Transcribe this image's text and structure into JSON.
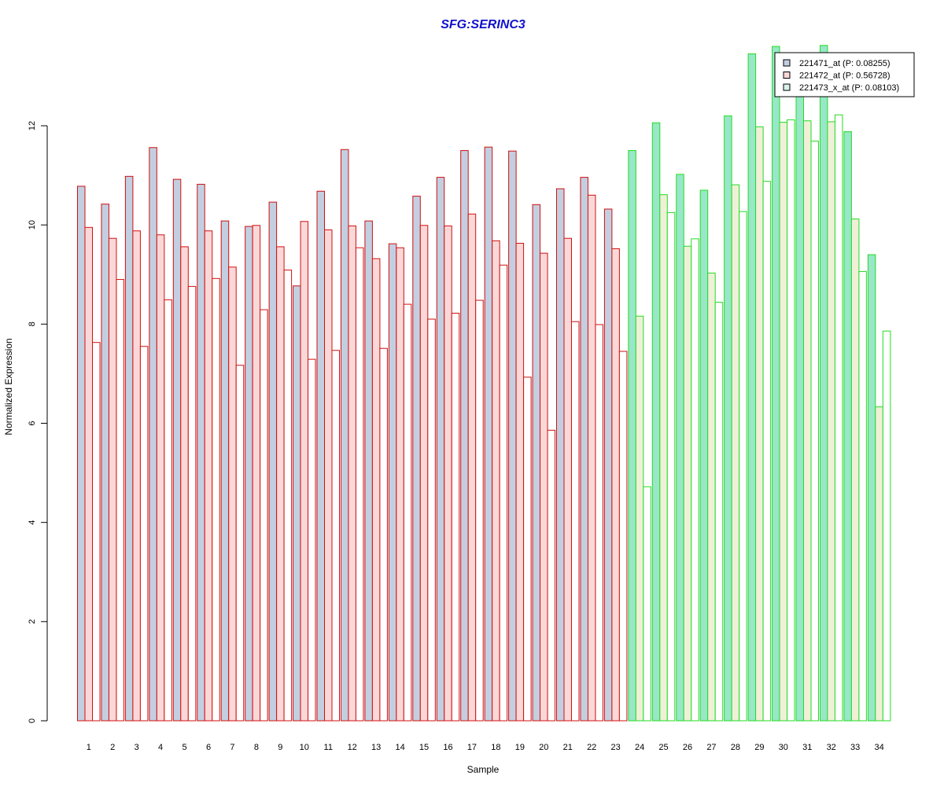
{
  "chart_data": {
    "type": "bar",
    "title": "SFG:SERINC3",
    "xlabel": "Sample",
    "ylabel": "Normalized Expression",
    "ylim": [
      0,
      13.7
    ],
    "yticks": [
      "0",
      "2",
      "4",
      "6",
      "8",
      "10",
      "12"
    ],
    "categories": [
      "1",
      "2",
      "3",
      "4",
      "5",
      "6",
      "7",
      "8",
      "9",
      "10",
      "11",
      "12",
      "13",
      "14",
      "15",
      "16",
      "17",
      "18",
      "19",
      "20",
      "21",
      "22",
      "23",
      "24",
      "25",
      "26",
      "27",
      "28",
      "29",
      "30",
      "31",
      "32",
      "33",
      "34"
    ],
    "group_split_after": 23,
    "group_colors": {
      "group1": {
        "outline": "#d01010",
        "fills": [
          "#c3cfe0",
          "#fbd8d8",
          "#ffffff"
        ]
      },
      "group2": {
        "outline": "#22dd22",
        "fills": [
          "#99e6c8",
          "#f0f0d8",
          "#ffffff"
        ]
      }
    },
    "legend": {
      "position": "top-right",
      "entry_fills": [
        "#c3cfe0",
        "#fbd8d8",
        "#d9f2ee"
      ]
    },
    "series": [
      {
        "name": "221471_at (P: 0.08255)",
        "values": [
          10.78,
          10.42,
          10.98,
          11.56,
          10.92,
          10.82,
          10.08,
          9.97,
          10.46,
          8.77,
          10.68,
          11.52,
          10.08,
          9.62,
          10.58,
          10.96,
          11.5,
          11.57,
          11.49,
          10.41,
          10.73,
          10.96,
          10.32,
          11.5,
          12.06,
          11.02,
          10.7,
          12.2,
          13.45,
          13.6,
          13.35,
          13.62,
          11.88,
          9.4
        ]
      },
      {
        "name": "221472_at (P: 0.56728)",
        "values": [
          9.95,
          9.73,
          9.88,
          9.8,
          9.56,
          9.88,
          9.15,
          9.99,
          9.56,
          10.07,
          9.9,
          9.98,
          9.32,
          9.54,
          9.99,
          9.98,
          10.22,
          9.68,
          9.63,
          9.43,
          9.73,
          10.6,
          9.52,
          8.16,
          10.61,
          9.57,
          9.03,
          10.81,
          11.98,
          12.07,
          12.1,
          12.08,
          10.12,
          6.33
        ]
      },
      {
        "name": "221473_x_at (P: 0.08103)",
        "values": [
          7.63,
          8.9,
          7.55,
          8.49,
          8.76,
          8.92,
          7.17,
          8.29,
          9.09,
          7.29,
          7.47,
          9.54,
          7.51,
          8.4,
          8.1,
          8.22,
          8.48,
          9.19,
          6.93,
          5.86,
          8.05,
          7.99,
          7.45,
          4.72,
          10.25,
          9.72,
          8.44,
          10.27,
          10.88,
          12.12,
          11.69,
          12.22,
          9.06,
          7.86
        ]
      }
    ]
  }
}
